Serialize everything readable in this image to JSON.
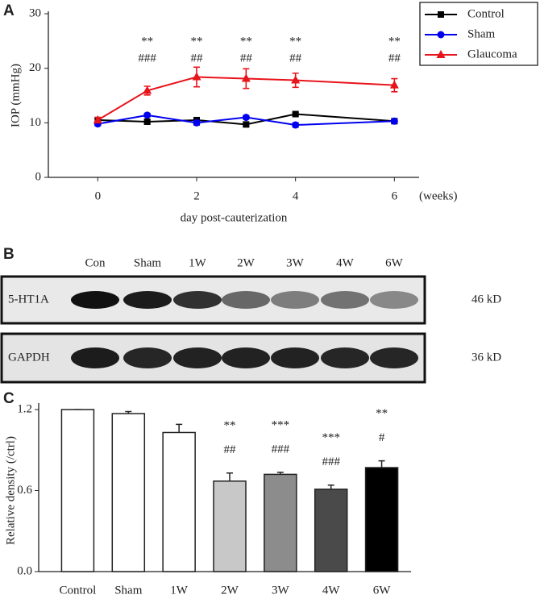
{
  "chart_data": [
    {
      "type": "line",
      "panel_label": "A",
      "x_label": "day post-cauterization",
      "x_unit": "(weeks)",
      "y_label": "IOP (mmHg)",
      "x": [
        0,
        1,
        2,
        3,
        4,
        6
      ],
      "xlim": [
        -1,
        6.5
      ],
      "xticks": [
        0,
        2,
        4,
        6
      ],
      "ylim": [
        0,
        30
      ],
      "yticks": [
        0,
        10,
        20,
        30
      ],
      "legend": "top-right",
      "series": [
        {
          "name": "Control",
          "color": "#000000",
          "marker": "square",
          "values": [
            10.5,
            10.2,
            10.5,
            9.7,
            11.6,
            10.3
          ],
          "errors": [
            0.3,
            0.3,
            0.4,
            0.3,
            0.3,
            0.3
          ]
        },
        {
          "name": "Sham",
          "color": "#0000ee",
          "marker": "circle",
          "values": [
            9.8,
            11.4,
            10.0,
            11.0,
            9.6,
            10.3
          ],
          "errors": [
            0.3,
            0.3,
            0.4,
            0.3,
            0.4,
            0.3
          ]
        },
        {
          "name": "Glaucoma",
          "color": "#e8141b",
          "marker": "triangle",
          "values": [
            10.5,
            15.9,
            18.4,
            18.1,
            17.8,
            16.9
          ],
          "errors": [
            0.5,
            0.8,
            1.8,
            1.8,
            1.3,
            1.2
          ]
        }
      ],
      "annotations_top": [
        null,
        "**",
        "**",
        "**",
        "**",
        "**"
      ],
      "annotations_bottom": [
        null,
        "###",
        "##",
        "##",
        "##",
        "##"
      ]
    },
    {
      "type": "bar",
      "panel_label": "C",
      "y_label": "Relative density (/ctrl)",
      "categories": [
        "Control",
        "Sham",
        "1W",
        "2W",
        "3W",
        "4W",
        "6W"
      ],
      "values": [
        1.2,
        1.17,
        1.03,
        0.67,
        0.72,
        0.61,
        0.77
      ],
      "errors": [
        0,
        0.015,
        0.06,
        0.06,
        0.015,
        0.03,
        0.05
      ],
      "colors": [
        "#ffffff",
        "#ffffff",
        "#ffffff",
        "#c8c8c8",
        "#8c8c8c",
        "#4a4a4a",
        "#000000"
      ],
      "ylim": [
        0,
        1.2
      ],
      "yticks": [
        {
          "value": 0,
          "label": "0.0"
        },
        0.6,
        1.2
      ],
      "annotations_top": [
        null,
        null,
        null,
        "**",
        "***",
        "***",
        "**"
      ],
      "annotations_bottom": [
        null,
        null,
        null,
        "##",
        "###",
        "###",
        "#"
      ]
    }
  ],
  "blot": {
    "panel_label": "B",
    "lanes": [
      "Con",
      "Sham",
      "1W",
      "2W",
      "3W",
      "4W",
      "6W"
    ],
    "rows": [
      {
        "label": "5-HT1A",
        "size": "46 kD"
      },
      {
        "label": "GAPDH",
        "size": "36 kD"
      }
    ]
  }
}
